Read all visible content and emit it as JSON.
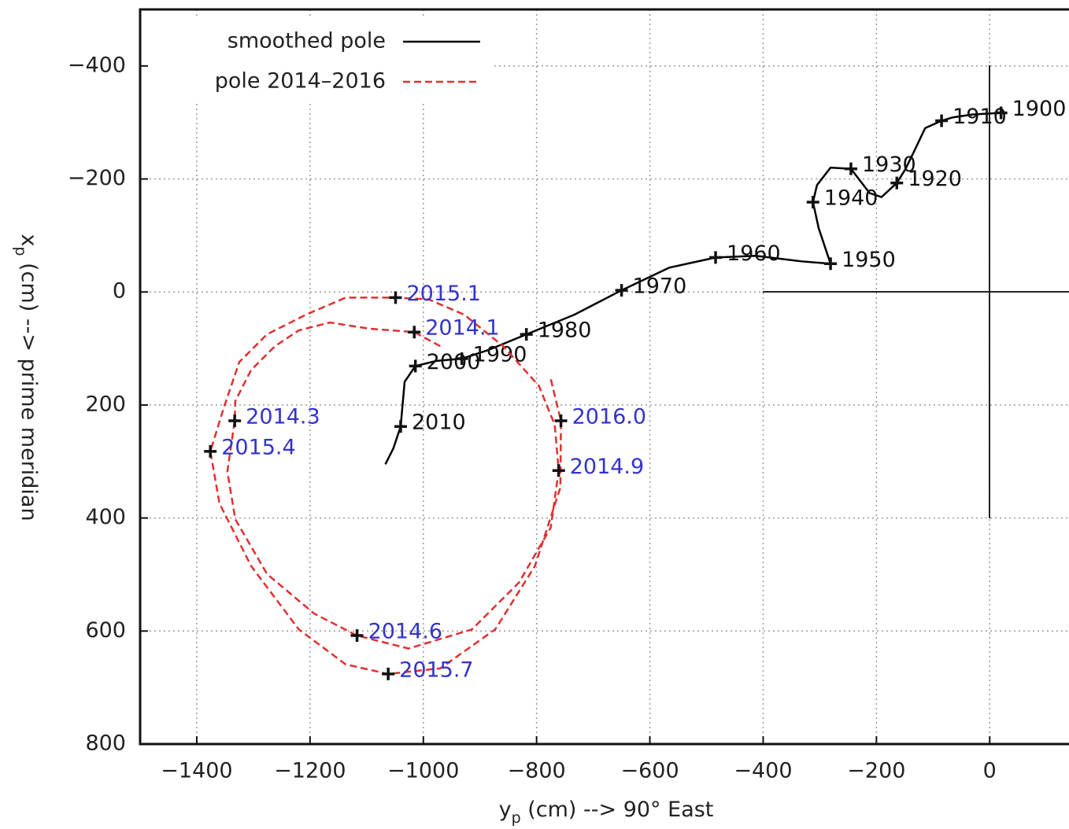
{
  "chart_data": {
    "type": "line",
    "xlabel": {
      "var": "y",
      "sub": "p",
      "text": " (cm) --> 90° East"
    },
    "ylabel": {
      "var": "x",
      "sub": "p",
      "text": " (cm) --> prime meridian"
    },
    "xlim": [
      -1500,
      140
    ],
    "ylim": [
      -500,
      800
    ],
    "y_inverted": true,
    "xticks": [
      {
        "value": -1400,
        "label": "−1400"
      },
      {
        "value": -1200,
        "label": "−1200"
      },
      {
        "value": -1000,
        "label": "−1000"
      },
      {
        "value": -800,
        "label": "−800"
      },
      {
        "value": -600,
        "label": "−600"
      },
      {
        "value": -400,
        "label": "−400"
      },
      {
        "value": -200,
        "label": "−200"
      },
      0
    ],
    "yticks": [
      {
        "value": -400,
        "label": "−400"
      },
      {
        "value": -200,
        "label": "−200"
      },
      0,
      200,
      400,
      600,
      800
    ],
    "grid": true,
    "legend": "upper left",
    "series": [
      {
        "name": "smoothed pole",
        "color": "#000000",
        "dash": false,
        "x": [
          20,
          -31,
          -65,
          -85,
          -114,
          -132,
          -149,
          -164,
          -191,
          -212,
          -245,
          -281,
          -305,
          -312,
          -302,
          -281,
          -330,
          -413,
          -484,
          -566,
          -650,
          -733,
          -818,
          -886,
          -932,
          -977,
          -1014,
          -1033,
          -1040,
          -1053,
          -1067
        ],
        "values": [
          -317,
          -314,
          -309,
          -303,
          -290,
          -252,
          -217,
          -193,
          -168,
          -175,
          -218,
          -220,
          -189,
          -159,
          -113,
          -50,
          -54,
          -64,
          -61,
          -43,
          -3,
          40,
          75,
          103,
          118,
          122,
          131,
          159,
          238,
          277,
          305
        ],
        "marker_labels": [
          "1900",
          "1910",
          "1920",
          "1930",
          "1940",
          "1950",
          "1960",
          "1970",
          "1980",
          "1990",
          "2000",
          "2010"
        ],
        "marker_x": [
          20,
          -85,
          -164,
          -245,
          -312,
          -281,
          -484,
          -650,
          -818,
          -932,
          -1014,
          -1040
        ],
        "marker_y": [
          -317,
          -303,
          -193,
          -218,
          -159,
          -50,
          -61,
          -3,
          75,
          118,
          131,
          238
        ],
        "label_color": "#111111"
      },
      {
        "name": "pole 2014–2016",
        "color": "#e03030",
        "dash": true,
        "x": [
          -970,
          -1016,
          -1095,
          -1165,
          -1220,
          -1262,
          -1304,
          -1332,
          -1333,
          -1346,
          -1332,
          -1276,
          -1193,
          -1117,
          -1026,
          -914,
          -831,
          -775,
          -761,
          -768,
          -796,
          -859,
          -928,
          -991,
          -1049,
          -1137,
          -1207,
          -1276,
          -1325,
          -1353,
          -1376,
          -1360,
          -1304,
          -1220,
          -1137,
          -1062,
          -970,
          -873,
          -803,
          -758,
          -757,
          -775
        ],
        "values": [
          96,
          71,
          65,
          54,
          68,
          96,
          138,
          193,
          228,
          318,
          402,
          499,
          569,
          608,
          631,
          597,
          514,
          417,
          316,
          235,
          166,
          96,
          40,
          13,
          10,
          10,
          40,
          75,
          124,
          207,
          282,
          374,
          485,
          597,
          659,
          676,
          666,
          597,
          485,
          346,
          228,
          154
        ],
        "marker_labels": [
          "2014.1",
          "2014.3",
          "2014.6",
          "2014.9",
          "2015.1",
          "2015.4",
          "2015.7",
          "2016.0"
        ],
        "marker_x": [
          -1016,
          -1333,
          -1117,
          -761,
          -1049,
          -1376,
          -1062,
          -757
        ],
        "marker_y": [
          71,
          228,
          608,
          316,
          10,
          282,
          676,
          228
        ],
        "label_color": "#3333cc"
      }
    ]
  }
}
